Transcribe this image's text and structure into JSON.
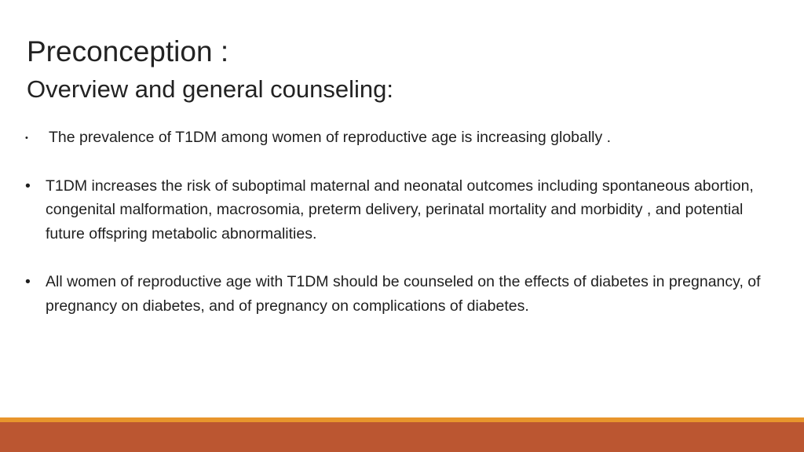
{
  "slide": {
    "title": "Preconception :",
    "subtitle": "Overview and general counseling:",
    "bullets": [
      {
        "marker": "•",
        "text": "The prevalence of T1DM among women of reproductive age is increasing globally ."
      },
      {
        "marker": "•",
        "text": "T1DM increases the risk of suboptimal maternal and neonatal outcomes including spontaneous abortion, congenital malformation, macrosomia, preterm delivery, perinatal mortality and morbidity , and potential future offspring metabolic abnormalities."
      },
      {
        "marker": "•",
        "text": "All women of reproductive age with T1DM should be counseled on the effects of diabetes in pregnancy, of pregnancy on diabetes, and of pregnancy on complications of diabetes."
      }
    ]
  },
  "colors": {
    "accent_stripe": "#e8952c",
    "footer_band": "#bb5631"
  }
}
